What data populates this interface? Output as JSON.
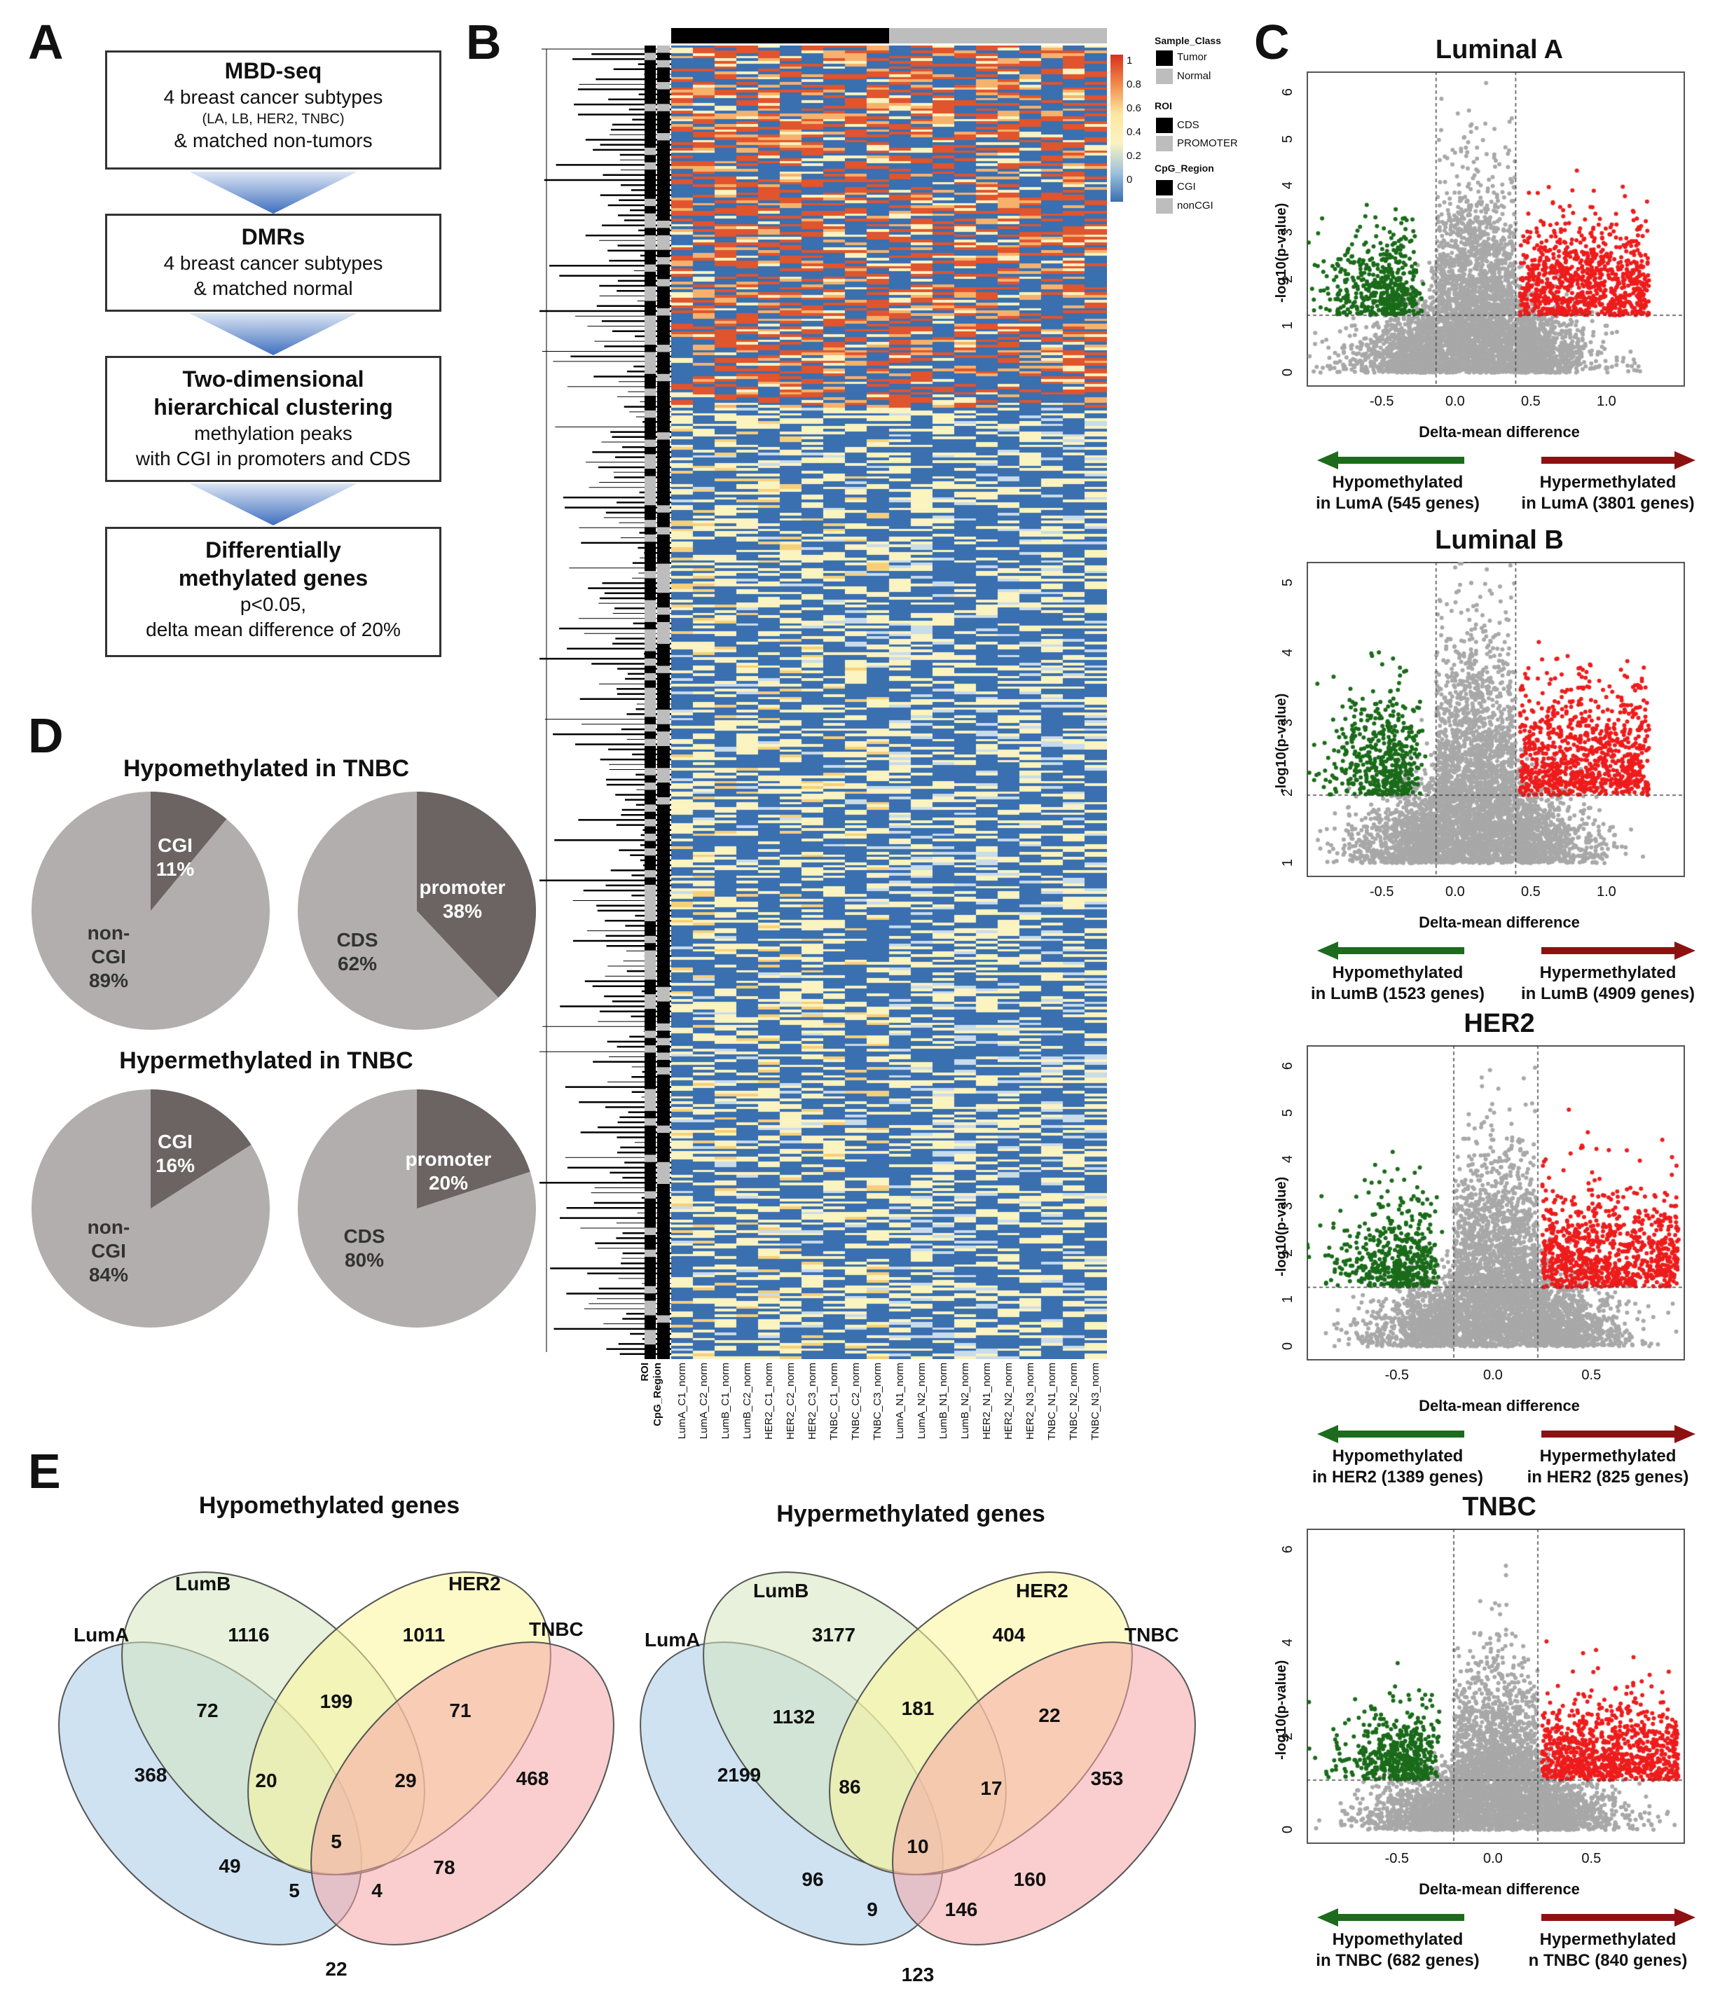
{
  "panel_letters": {
    "a": "A",
    "b": "B",
    "c": "C",
    "d": "D",
    "e": "E"
  },
  "panelA": {
    "boxes": [
      {
        "title": "MBD-seq",
        "line1": "4 breast cancer subtypes",
        "line2": "(LA, LB, HER2, TNBC)",
        "line3": "& matched non-tumors"
      },
      {
        "title": "DMRs",
        "line1": "4 breast cancer subtypes",
        "line2": "& matched normal"
      },
      {
        "title1": "Two-dimensional",
        "title2": "hierarchical clustering",
        "line1": "methylation peaks",
        "line2": "with CGI in promoters and CDS"
      },
      {
        "title1": "Differentially",
        "title2": "methylated genes",
        "line1": "p<0.05,",
        "line2": "delta mean difference of 20%"
      }
    ]
  },
  "panelB": {
    "colorbar_ticks": [
      "1",
      "0.8",
      "0.6",
      "0.4",
      "0.2",
      "0"
    ],
    "legend": {
      "sample_class": {
        "title": "Sample_Class",
        "items": [
          "Tumor",
          "Normal"
        ]
      },
      "roi": {
        "title": "ROI",
        "items": [
          "CDS",
          "PROMOTER"
        ]
      },
      "cpg": {
        "title": "CpG_Region",
        "items": [
          "CGI",
          "nonCGI"
        ]
      }
    },
    "row_annot_labels": [
      "CpG_Region",
      "ROI"
    ],
    "columns": [
      "LumA_C1_norm",
      "LumA_C2_norm",
      "LumB_C1_norm",
      "LumB_C2_norm",
      "HER2_C1_norm",
      "HER2_C2_norm",
      "HER2_C3_norm",
      "TNBC_C1_norm",
      "TNBC_C2_norm",
      "TNBC_C3_norm",
      "LumA_N1_norm",
      "LumA_N2_norm",
      "LumB_N1_norm",
      "LumB_N2_norm",
      "HER2_N1_norm",
      "HER2_N2_norm",
      "HER2_N3_norm",
      "TNBC_N1_norm",
      "TNBC_N2_norm",
      "TNBC_N3_norm"
    ],
    "colors": {
      "low": "#3a6fb0",
      "mid": "#fbf3c0",
      "high": "#e0542e"
    }
  },
  "panelC": {
    "ylabel": "-log10(p-value)",
    "xlabel": "Delta-mean difference",
    "colors": {
      "hypo": "#1a6b1a",
      "hyper": "#ee1c1c",
      "ns": "#a8a8a8",
      "arrow_hypo": "#1d6b1d",
      "arrow_hyper": "#8e1111"
    },
    "plots": [
      {
        "title": "Luminal A",
        "xticks": [
          "-0.5",
          "0.0",
          "0.5",
          "1.0"
        ],
        "yticks": [
          "0",
          "1",
          "2",
          "3",
          "4",
          "5",
          "6"
        ],
        "hypo_line1": "Hypomethylated",
        "hypo_line2": "in LumA (545 genes)",
        "hyper_line1": "Hypermethylated",
        "hyper_line2": "in LumA (3801 genes)"
      },
      {
        "title": "Luminal B",
        "xticks": [
          "-0.5",
          "0.0",
          "0.5",
          "1.0"
        ],
        "yticks": [
          "1",
          "2",
          "3",
          "4",
          "5"
        ],
        "hypo_line1": "Hypomethylated",
        "hypo_line2": "in LumB (1523 genes)",
        "hyper_line1": "Hypermethylated",
        "hyper_line2": "in LumB (4909 genes)"
      },
      {
        "title": "HER2",
        "xticks": [
          "-0.5",
          "0.0",
          "0.5"
        ],
        "yticks": [
          "0",
          "1",
          "2",
          "3",
          "4",
          "5",
          "6"
        ],
        "hypo_line1": "Hypomethylated",
        "hypo_line2": "in HER2 (1389 genes)",
        "hyper_line1": "Hypermethylated",
        "hyper_line2": "in HER2 (825 genes)"
      },
      {
        "title": "TNBC",
        "xticks": [
          "-0.5",
          "0.0",
          "0.5"
        ],
        "yticks": [
          "0",
          "2",
          "4",
          "6"
        ],
        "hypo_line1": "Hypomethylated",
        "hypo_line2": "in TNBC (682 genes)",
        "hyper_line1": "Hypermethylated",
        "hyper_line2": "n TNBC (840 genes)"
      }
    ]
  },
  "panelD": {
    "hypo_title": "Hypomethylated in TNBC",
    "hyper_title": "Hypermethylated in TNBC",
    "pies": [
      {
        "small_label": "CGI",
        "small_pct": "11%",
        "large_label1": "non-",
        "large_label2": "CGI",
        "large_pct": "89%",
        "small_value": 11
      },
      {
        "small_label": "promoter",
        "small_pct": "38%",
        "large_label1": "CDS",
        "large_pct": "62%",
        "small_value": 38
      },
      {
        "small_label": "CGI",
        "small_pct": "16%",
        "large_label1": "non-",
        "large_label2": "CGI",
        "large_pct": "84%",
        "small_value": 16
      },
      {
        "small_label": "promoter",
        "small_pct": "20%",
        "large_label1": "CDS",
        "large_pct": "80%",
        "small_value": 20
      }
    ],
    "colors": {
      "small": "#6b6463",
      "large": "#b2aeae"
    }
  },
  "panelE": {
    "hypo": {
      "title": "Hypomethylated genes",
      "sets": [
        "LumA",
        "LumB",
        "HER2",
        "TNBC"
      ],
      "counts": [
        "368",
        "1116",
        "1011",
        "468",
        "72",
        "199",
        "71",
        "20",
        "29",
        "5",
        "49",
        "78",
        "5",
        "4",
        "22"
      ]
    },
    "hyper": {
      "title": "Hypermethylated genes",
      "sets": [
        "LumA",
        "LumB",
        "HER2",
        "TNBC"
      ],
      "counts": [
        "2199",
        "3177",
        "404",
        "353",
        "1132",
        "181",
        "22",
        "86",
        "17",
        "10",
        "96",
        "160",
        "9",
        "146",
        "123"
      ]
    },
    "colors": [
      "#a8cbe8",
      "#d4e6bd",
      "#fbf59a",
      "#f6a6a6"
    ]
  }
}
